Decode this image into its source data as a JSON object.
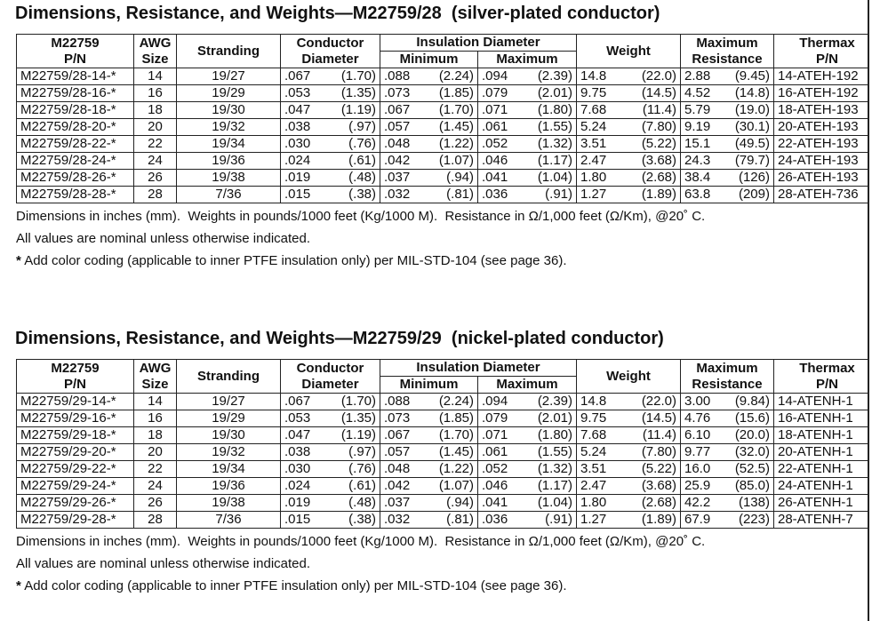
{
  "sections": [
    {
      "title": "Dimensions, Resistance, and Weights—M22759/28  (silver-plated conductor)",
      "table": {
        "header": {
          "pn": [
            "M22759",
            "P/N"
          ],
          "awg": [
            "AWG",
            "Size"
          ],
          "stranding": "Stranding",
          "conductor": [
            "Conductor",
            "Diameter"
          ],
          "insulation": "Insulation Diameter",
          "minimum": "Minimum",
          "maximum": "Maximum",
          "weight": "Weight",
          "resistance": [
            "Maximum",
            "Resistance"
          ],
          "thermax": [
            "Thermax",
            "P/N"
          ]
        },
        "rows": [
          [
            "M22759/28-14-*",
            "14",
            "19/27",
            [
              ".067",
              "(1.70)"
            ],
            [
              ".088",
              "(2.24)"
            ],
            [
              ".094",
              "(2.39)"
            ],
            [
              "14.8",
              "(22.0)"
            ],
            [
              "2.88",
              "(9.45)"
            ],
            "14-ATEH-192"
          ],
          [
            "M22759/28-16-*",
            "16",
            "19/29",
            [
              ".053",
              "(1.35)"
            ],
            [
              ".073",
              "(1.85)"
            ],
            [
              ".079",
              "(2.01)"
            ],
            [
              "9.75",
              "(14.5)"
            ],
            [
              "4.52",
              "(14.8)"
            ],
            "16-ATEH-192"
          ],
          [
            "M22759/28-18-*",
            "18",
            "19/30",
            [
              ".047",
              "(1.19)"
            ],
            [
              ".067",
              "(1.70)"
            ],
            [
              ".071",
              "(1.80)"
            ],
            [
              "7.68",
              "(11.4)"
            ],
            [
              "5.79",
              "(19.0)"
            ],
            "18-ATEH-193"
          ],
          [
            "M22759/28-20-*",
            "20",
            "19/32",
            [
              ".038",
              "(.97)"
            ],
            [
              ".057",
              "(1.45)"
            ],
            [
              ".061",
              "(1.55)"
            ],
            [
              "5.24",
              "(7.80)"
            ],
            [
              "9.19",
              "(30.1)"
            ],
            "20-ATEH-193"
          ],
          [
            "M22759/28-22-*",
            "22",
            "19/34",
            [
              ".030",
              "(.76)"
            ],
            [
              ".048",
              "(1.22)"
            ],
            [
              ".052",
              "(1.32)"
            ],
            [
              "3.51",
              "(5.22)"
            ],
            [
              "15.1",
              "(49.5)"
            ],
            "22-ATEH-193"
          ],
          [
            "M22759/28-24-*",
            "24",
            "19/36",
            [
              ".024",
              "(.61)"
            ],
            [
              ".042",
              "(1.07)"
            ],
            [
              ".046",
              "(1.17)"
            ],
            [
              "2.47",
              "(3.68)"
            ],
            [
              "24.3",
              "(79.7)"
            ],
            "24-ATEH-193"
          ],
          [
            "M22759/28-26-*",
            "26",
            "19/38",
            [
              ".019",
              "(.48)"
            ],
            [
              ".037",
              "(.94)"
            ],
            [
              ".041",
              "(1.04)"
            ],
            [
              "1.80",
              "(2.68)"
            ],
            [
              "38.4",
              "(126)"
            ],
            "26-ATEH-193"
          ],
          [
            "M22759/28-28-*",
            "28",
            "7/36",
            [
              ".015",
              "(.38)"
            ],
            [
              ".032",
              "(.81)"
            ],
            [
              ".036",
              "(.91)"
            ],
            [
              "1.27",
              "(1.89)"
            ],
            [
              "63.8",
              "(209)"
            ],
            "28-ATEH-736"
          ]
        ]
      },
      "notes": [
        "Dimensions in inches (mm).  Weights in pounds/1000 feet (Kg/1000 M).  Resistance in Ω/1,000 feet (Ω/Km), @20˚ C.",
        "All values are nominal unless otherwise indicated."
      ],
      "footnote": {
        "mark": "*",
        "text": "Add color coding (applicable to inner PTFE insulation only) per MIL-STD-104 (see page 36)."
      }
    },
    {
      "title": "Dimensions, Resistance, and Weights—M22759/29  (nickel-plated conductor)",
      "table": {
        "header": {
          "pn": [
            "M22759",
            "P/N"
          ],
          "awg": [
            "AWG",
            "Size"
          ],
          "stranding": "Stranding",
          "conductor": [
            "Conductor",
            "Diameter"
          ],
          "insulation": "Insulation Diameter",
          "minimum": "Minimum",
          "maximum": "Maximum",
          "weight": "Weight",
          "resistance": [
            "Maximum",
            "Resistance"
          ],
          "thermax": [
            "Thermax",
            "P/N"
          ]
        },
        "rows": [
          [
            "M22759/29-14-*",
            "14",
            "19/27",
            [
              ".067",
              "(1.70)"
            ],
            [
              ".088",
              "(2.24)"
            ],
            [
              ".094",
              "(2.39)"
            ],
            [
              "14.8",
              "(22.0)"
            ],
            [
              "3.00",
              "(9.84)"
            ],
            "14-ATENH-1"
          ],
          [
            "M22759/29-16-*",
            "16",
            "19/29",
            [
              ".053",
              "(1.35)"
            ],
            [
              ".073",
              "(1.85)"
            ],
            [
              ".079",
              "(2.01)"
            ],
            [
              "9.75",
              "(14.5)"
            ],
            [
              "4.76",
              "(15.6)"
            ],
            "16-ATENH-1"
          ],
          [
            "M22759/29-18-*",
            "18",
            "19/30",
            [
              ".047",
              "(1.19)"
            ],
            [
              ".067",
              "(1.70)"
            ],
            [
              ".071",
              "(1.80)"
            ],
            [
              "7.68",
              "(11.4)"
            ],
            [
              "6.10",
              "(20.0)"
            ],
            "18-ATENH-1"
          ],
          [
            "M22759/29-20-*",
            "20",
            "19/32",
            [
              ".038",
              "(.97)"
            ],
            [
              ".057",
              "(1.45)"
            ],
            [
              ".061",
              "(1.55)"
            ],
            [
              "5.24",
              "(7.80)"
            ],
            [
              "9.77",
              "(32.0)"
            ],
            "20-ATENH-1"
          ],
          [
            "M22759/29-22-*",
            "22",
            "19/34",
            [
              ".030",
              "(.76)"
            ],
            [
              ".048",
              "(1.22)"
            ],
            [
              ".052",
              "(1.32)"
            ],
            [
              "3.51",
              "(5.22)"
            ],
            [
              "16.0",
              "(52.5)"
            ],
            "22-ATENH-1"
          ],
          [
            "M22759/29-24-*",
            "24",
            "19/36",
            [
              ".024",
              "(.61)"
            ],
            [
              ".042",
              "(1.07)"
            ],
            [
              ".046",
              "(1.17)"
            ],
            [
              "2.47",
              "(3.68)"
            ],
            [
              "25.9",
              "(85.0)"
            ],
            "24-ATENH-1"
          ],
          [
            "M22759/29-26-*",
            "26",
            "19/38",
            [
              ".019",
              "(.48)"
            ],
            [
              ".037",
              "(.94)"
            ],
            [
              ".041",
              "(1.04)"
            ],
            [
              "1.80",
              "(2.68)"
            ],
            [
              "42.2",
              "(138)"
            ],
            "26-ATENH-1"
          ],
          [
            "M22759/29-28-*",
            "28",
            "7/36",
            [
              ".015",
              "(.38)"
            ],
            [
              ".032",
              "(.81)"
            ],
            [
              ".036",
              "(.91)"
            ],
            [
              "1.27",
              "(1.89)"
            ],
            [
              "67.9",
              "(223)"
            ],
            "28-ATENH-7"
          ]
        ]
      },
      "notes": [
        "Dimensions in inches (mm).  Weights in pounds/1000 feet (Kg/1000 M).  Resistance in Ω/1,000 feet (Ω/Km), @20˚ C.",
        "All values are nominal unless otherwise indicated."
      ],
      "footnote": {
        "mark": "*",
        "text": "Add color coding (applicable to inner PTFE insulation only) per MIL-STD-104 (see page 36)."
      }
    }
  ]
}
